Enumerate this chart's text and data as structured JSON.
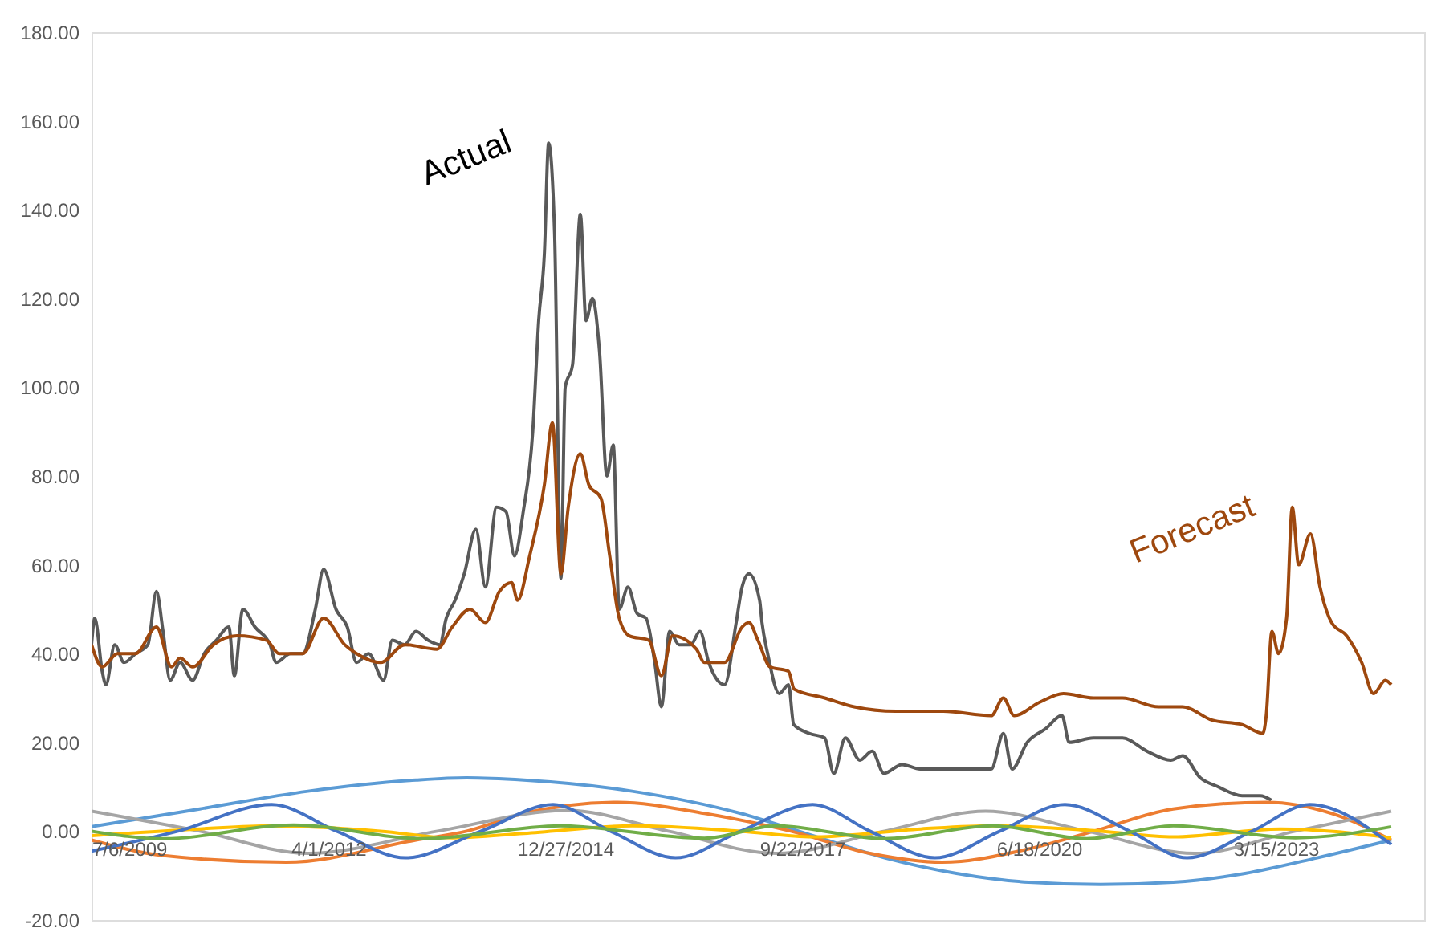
{
  "chart_data": {
    "type": "line",
    "xlim": [
      "2009-07-06",
      "2024-12-01"
    ],
    "xticks": [
      {
        "value": "2009-07-06",
        "label": "7/6/2009"
      },
      {
        "value": "2012-04-01",
        "label": "4/1/2012"
      },
      {
        "value": "2014-12-27",
        "label": "12/27/2014"
      },
      {
        "value": "2017-09-22",
        "label": "9/22/2017"
      },
      {
        "value": "2020-06-18",
        "label": "6/18/2020"
      },
      {
        "value": "2023-03-15",
        "label": "3/15/2023"
      }
    ],
    "ylim": [
      -20,
      180
    ],
    "yticks": [
      {
        "value": -20,
        "label": "-20.00"
      },
      {
        "value": 0,
        "label": "0.00"
      },
      {
        "value": 20,
        "label": "20.00"
      },
      {
        "value": 40,
        "label": "40.00"
      },
      {
        "value": 60,
        "label": "60.00"
      },
      {
        "value": 80,
        "label": "80.00"
      },
      {
        "value": 100,
        "label": "100.00"
      },
      {
        "value": 120,
        "label": "120.00"
      },
      {
        "value": 140,
        "label": "140.00"
      },
      {
        "value": 160,
        "label": "160.00"
      },
      {
        "value": 180,
        "label": "180.00"
      }
    ],
    "grid": false,
    "series": [
      {
        "name": "Actual",
        "color": "#595959",
        "x": [
          "2009-07-06",
          "2009-07-20",
          "2009-08-20",
          "2009-09-05",
          "2009-10-12",
          "2009-11-20",
          "2010-01-08",
          "2010-03-01",
          "2010-04-06",
          "2010-05-04",
          "2010-06-03",
          "2010-07-15",
          "2010-09-06",
          "2010-10-25",
          "2010-12-15",
          "2011-02-06",
          "2011-03-01",
          "2011-04-06",
          "2011-05-27",
          "2011-07-30",
          "2011-08-24",
          "2011-10-24",
          "2011-12-15",
          "2012-02-06",
          "2012-03-12",
          "2012-05-03",
          "2012-06-20",
          "2012-07-29",
          "2012-09-18",
          "2012-11-20",
          "2012-12-27",
          "2013-02-17",
          "2013-04-06",
          "2013-05-27",
          "2013-07-15",
          "2013-08-12",
          "2013-09-18",
          "2013-10-27",
          "2013-12-15",
          "2014-01-24",
          "2014-03-12",
          "2014-04-21",
          "2014-05-27",
          "2014-07-03",
          "2014-08-12",
          "2014-09-06",
          "2014-09-30",
          "2014-10-18",
          "2014-11-12",
          "2014-12-09",
          "2014-12-27",
          "2015-01-27",
          "2015-03-01",
          "2015-03-25",
          "2015-04-21",
          "2015-05-21",
          "2015-06-21",
          "2015-07-18",
          "2015-08-12",
          "2015-09-18",
          "2015-10-27",
          "2015-12-03",
          "2016-01-09",
          "2016-02-06",
          "2016-03-12",
          "2016-04-21",
          "2016-06-09",
          "2016-07-18",
          "2016-08-24",
          "2016-10-30",
          "2016-12-18",
          "2017-01-12",
          "2017-02-10",
          "2017-03-27",
          "2017-04-06",
          "2017-04-30",
          "2017-06-18",
          "2017-07-27",
          "2017-08-18",
          "2017-10-24",
          "2017-12-27",
          "2018-02-03",
          "2018-03-24",
          "2018-05-24",
          "2018-07-15",
          "2018-09-03",
          "2018-11-18",
          "2019-02-03",
          "2019-05-12",
          "2019-08-21",
          "2019-11-30",
          "2020-01-20",
          "2020-02-26",
          "2020-04-30",
          "2020-07-15",
          "2020-09-24",
          "2020-10-24",
          "2021-02-03",
          "2021-06-06",
          "2021-09-18",
          "2021-12-27",
          "2022-02-15",
          "2022-05-01",
          "2022-07-15",
          "2022-10-24",
          "2023-01-09",
          "2023-02-24"
        ],
        "values": [
          42,
          48,
          36,
          33,
          42,
          38,
          40,
          42,
          54,
          45,
          34,
          38,
          34,
          40,
          43,
          46,
          35,
          50,
          46,
          42,
          38,
          40,
          40,
          50,
          59,
          50,
          46,
          38,
          40,
          34,
          43,
          42,
          45,
          43,
          42,
          48,
          52,
          58,
          68,
          55,
          73,
          72,
          62,
          72,
          90,
          115,
          130,
          155,
          135,
          57,
          100,
          105,
          139,
          115,
          120,
          108,
          80,
          87,
          50,
          55,
          49,
          48,
          38,
          28,
          45,
          42,
          42,
          45,
          38,
          33,
          47,
          55,
          58,
          52,
          47,
          40,
          31,
          33,
          24,
          22,
          21,
          13,
          21,
          16,
          18,
          13,
          15,
          14,
          14,
          14,
          14,
          22,
          14,
          20,
          23,
          26,
          20,
          21,
          21,
          18,
          16,
          17,
          12,
          10,
          8,
          8,
          7
        ]
      },
      {
        "name": "Forecast",
        "color": "#9e480e",
        "x": [
          "2009-07-06",
          "2009-08-20",
          "2009-10-24",
          "2010-01-08",
          "2010-04-06",
          "2010-06-09",
          "2010-07-15",
          "2010-09-06",
          "2010-12-03",
          "2011-03-12",
          "2011-07-15",
          "2011-09-06",
          "2011-12-15",
          "2012-03-12",
          "2012-06-09",
          "2012-07-29",
          "2012-11-09",
          "2013-02-17",
          "2013-07-03",
          "2013-09-06",
          "2013-11-20",
          "2014-01-24",
          "2014-03-24",
          "2014-05-15",
          "2014-06-09",
          "2014-07-30",
          "2014-09-30",
          "2014-11-03",
          "2014-12-09",
          "2015-01-09",
          "2015-03-01",
          "2015-04-06",
          "2015-05-27",
          "2015-07-03",
          "2015-08-12",
          "2015-09-24",
          "2015-12-15",
          "2016-02-06",
          "2016-03-24",
          "2016-07-03",
          "2016-08-06",
          "2016-10-30",
          "2017-01-12",
          "2017-02-10",
          "2017-03-20",
          "2017-05-10",
          "2017-07-27",
          "2017-08-20",
          "2017-12-27",
          "2018-04-30",
          "2018-10-24",
          "2019-05-12",
          "2019-11-30",
          "2020-01-20",
          "2020-03-06",
          "2020-06-20",
          "2020-09-30",
          "2021-02-03",
          "2021-06-06",
          "2021-11-06",
          "2022-02-15",
          "2022-06-20",
          "2022-10-24",
          "2023-01-20",
          "2023-02-03",
          "2023-02-27",
          "2023-03-27",
          "2023-04-30",
          "2023-05-24",
          "2023-06-20",
          "2023-08-09",
          "2023-09-18",
          "2023-11-06",
          "2024-01-09",
          "2024-03-12",
          "2024-05-01",
          "2024-06-20",
          "2024-07-15"
        ],
        "values": [
          42,
          37,
          40,
          40,
          46,
          37,
          39,
          37,
          42,
          44,
          43,
          40,
          40,
          48,
          42,
          40,
          38,
          42,
          41,
          46,
          50,
          47,
          54,
          56,
          52,
          62,
          78,
          92,
          58,
          73,
          85,
          78,
          75,
          62,
          48,
          44,
          43,
          35,
          44,
          41,
          38,
          38,
          46,
          47,
          43,
          37,
          36,
          32,
          30,
          28,
          27,
          27,
          26,
          30,
          26,
          29,
          31,
          30,
          30,
          28,
          28,
          25,
          24,
          22,
          26,
          45,
          40,
          48,
          73,
          60,
          67,
          55,
          47,
          44,
          38,
          31,
          34,
          33
        ]
      },
      {
        "color": "#5b9bd5",
        "x": [
          "2009-07-06",
          "2010-10-06",
          "2012-01-06",
          "2013-04-06",
          "2013-11-06",
          "2014-07-06",
          "2015-10-06",
          "2017-01-06",
          "2017-11-06",
          "2018-09-06",
          "2019-07-06",
          "2020-05-06",
          "2021-03-06",
          "2022-01-06",
          "2022-11-06",
          "2023-09-06",
          "2024-07-15"
        ],
        "values": [
          1,
          5,
          9,
          11.5,
          12,
          11.5,
          9,
          4,
          -1,
          -6,
          -9.5,
          -11.5,
          -12,
          -11.5,
          -9.5,
          -6,
          -2
        ]
      },
      {
        "color": "#ed7d31",
        "x": [
          "2009-07-06",
          "2010-05-06",
          "2011-10-06",
          "2013-04-06",
          "2013-11-06",
          "2014-07-06",
          "2015-08-06",
          "2016-08-06",
          "2017-08-06",
          "2018-07-06",
          "2019-05-06",
          "2020-05-06",
          "2021-02-06",
          "2022-01-06",
          "2023-02-06",
          "2023-11-06",
          "2024-07-15"
        ],
        "values": [
          -2,
          -5.5,
          -7,
          -2,
          0,
          4,
          6.5,
          4,
          0,
          -5,
          -7,
          -4,
          0,
          5,
          6.5,
          4,
          -2
        ]
      },
      {
        "color": "#a5a5a5",
        "x": [
          "2009-07-06",
          "2010-10-06",
          "2012-01-06",
          "2013-07-06",
          "2015-01-06",
          "2016-03-06",
          "2017-06-06",
          "2018-09-06",
          "2019-11-06",
          "2021-01-06",
          "2022-04-06",
          "2023-06-06",
          "2024-07-15"
        ],
        "values": [
          4.5,
          0,
          -5,
          0,
          4.7,
          0,
          -5,
          0,
          4.5,
          0,
          -5,
          0,
          4.5
        ]
      },
      {
        "color": "#ffc000",
        "x": [
          "2009-07-06",
          "2010-10-06",
          "2011-08-06",
          "2012-11-06",
          "2013-09-06",
          "2014-07-06",
          "2015-10-06",
          "2017-01-06",
          "2017-11-06",
          "2019-02-06",
          "2019-12-06",
          "2021-03-06",
          "2022-01-06",
          "2023-04-06",
          "2024-07-15"
        ],
        "values": [
          -1,
          0.5,
          1.2,
          0,
          -1.5,
          -0.5,
          1.2,
          0,
          -1.3,
          0.5,
          1.2,
          0,
          -1.3,
          0.5,
          -1.5
        ]
      },
      {
        "color": "#4472c4",
        "x": [
          "2009-07-06",
          "2010-07-06",
          "2011-08-06",
          "2012-05-06",
          "2013-02-20",
          "2014-01-06",
          "2014-11-06",
          "2015-07-06",
          "2016-04-06",
          "2017-01-06",
          "2017-11-06",
          "2018-07-06",
          "2019-04-06",
          "2020-01-06",
          "2020-10-06",
          "2021-07-06",
          "2022-03-06",
          "2022-12-06",
          "2023-08-06",
          "2024-07-15"
        ],
        "values": [
          -4.5,
          0,
          6,
          0,
          -6,
          0,
          6,
          0,
          -6,
          0,
          6,
          0,
          -6,
          0,
          6,
          0,
          -6,
          0,
          6,
          -3
        ]
      },
      {
        "color": "#70ad47",
        "x": [
          "2009-07-06",
          "2010-05-06",
          "2011-11-06",
          "2013-05-06",
          "2014-12-06",
          "2016-08-06",
          "2017-06-06",
          "2018-09-06",
          "2019-12-06",
          "2021-01-06",
          "2022-01-06",
          "2023-06-06",
          "2024-07-15"
        ],
        "values": [
          0,
          -1.7,
          1.4,
          -1.7,
          1.2,
          -1.6,
          1.2,
          -1.7,
          1.2,
          -1.7,
          1.2,
          -1.5,
          1
        ]
      }
    ]
  }
}
